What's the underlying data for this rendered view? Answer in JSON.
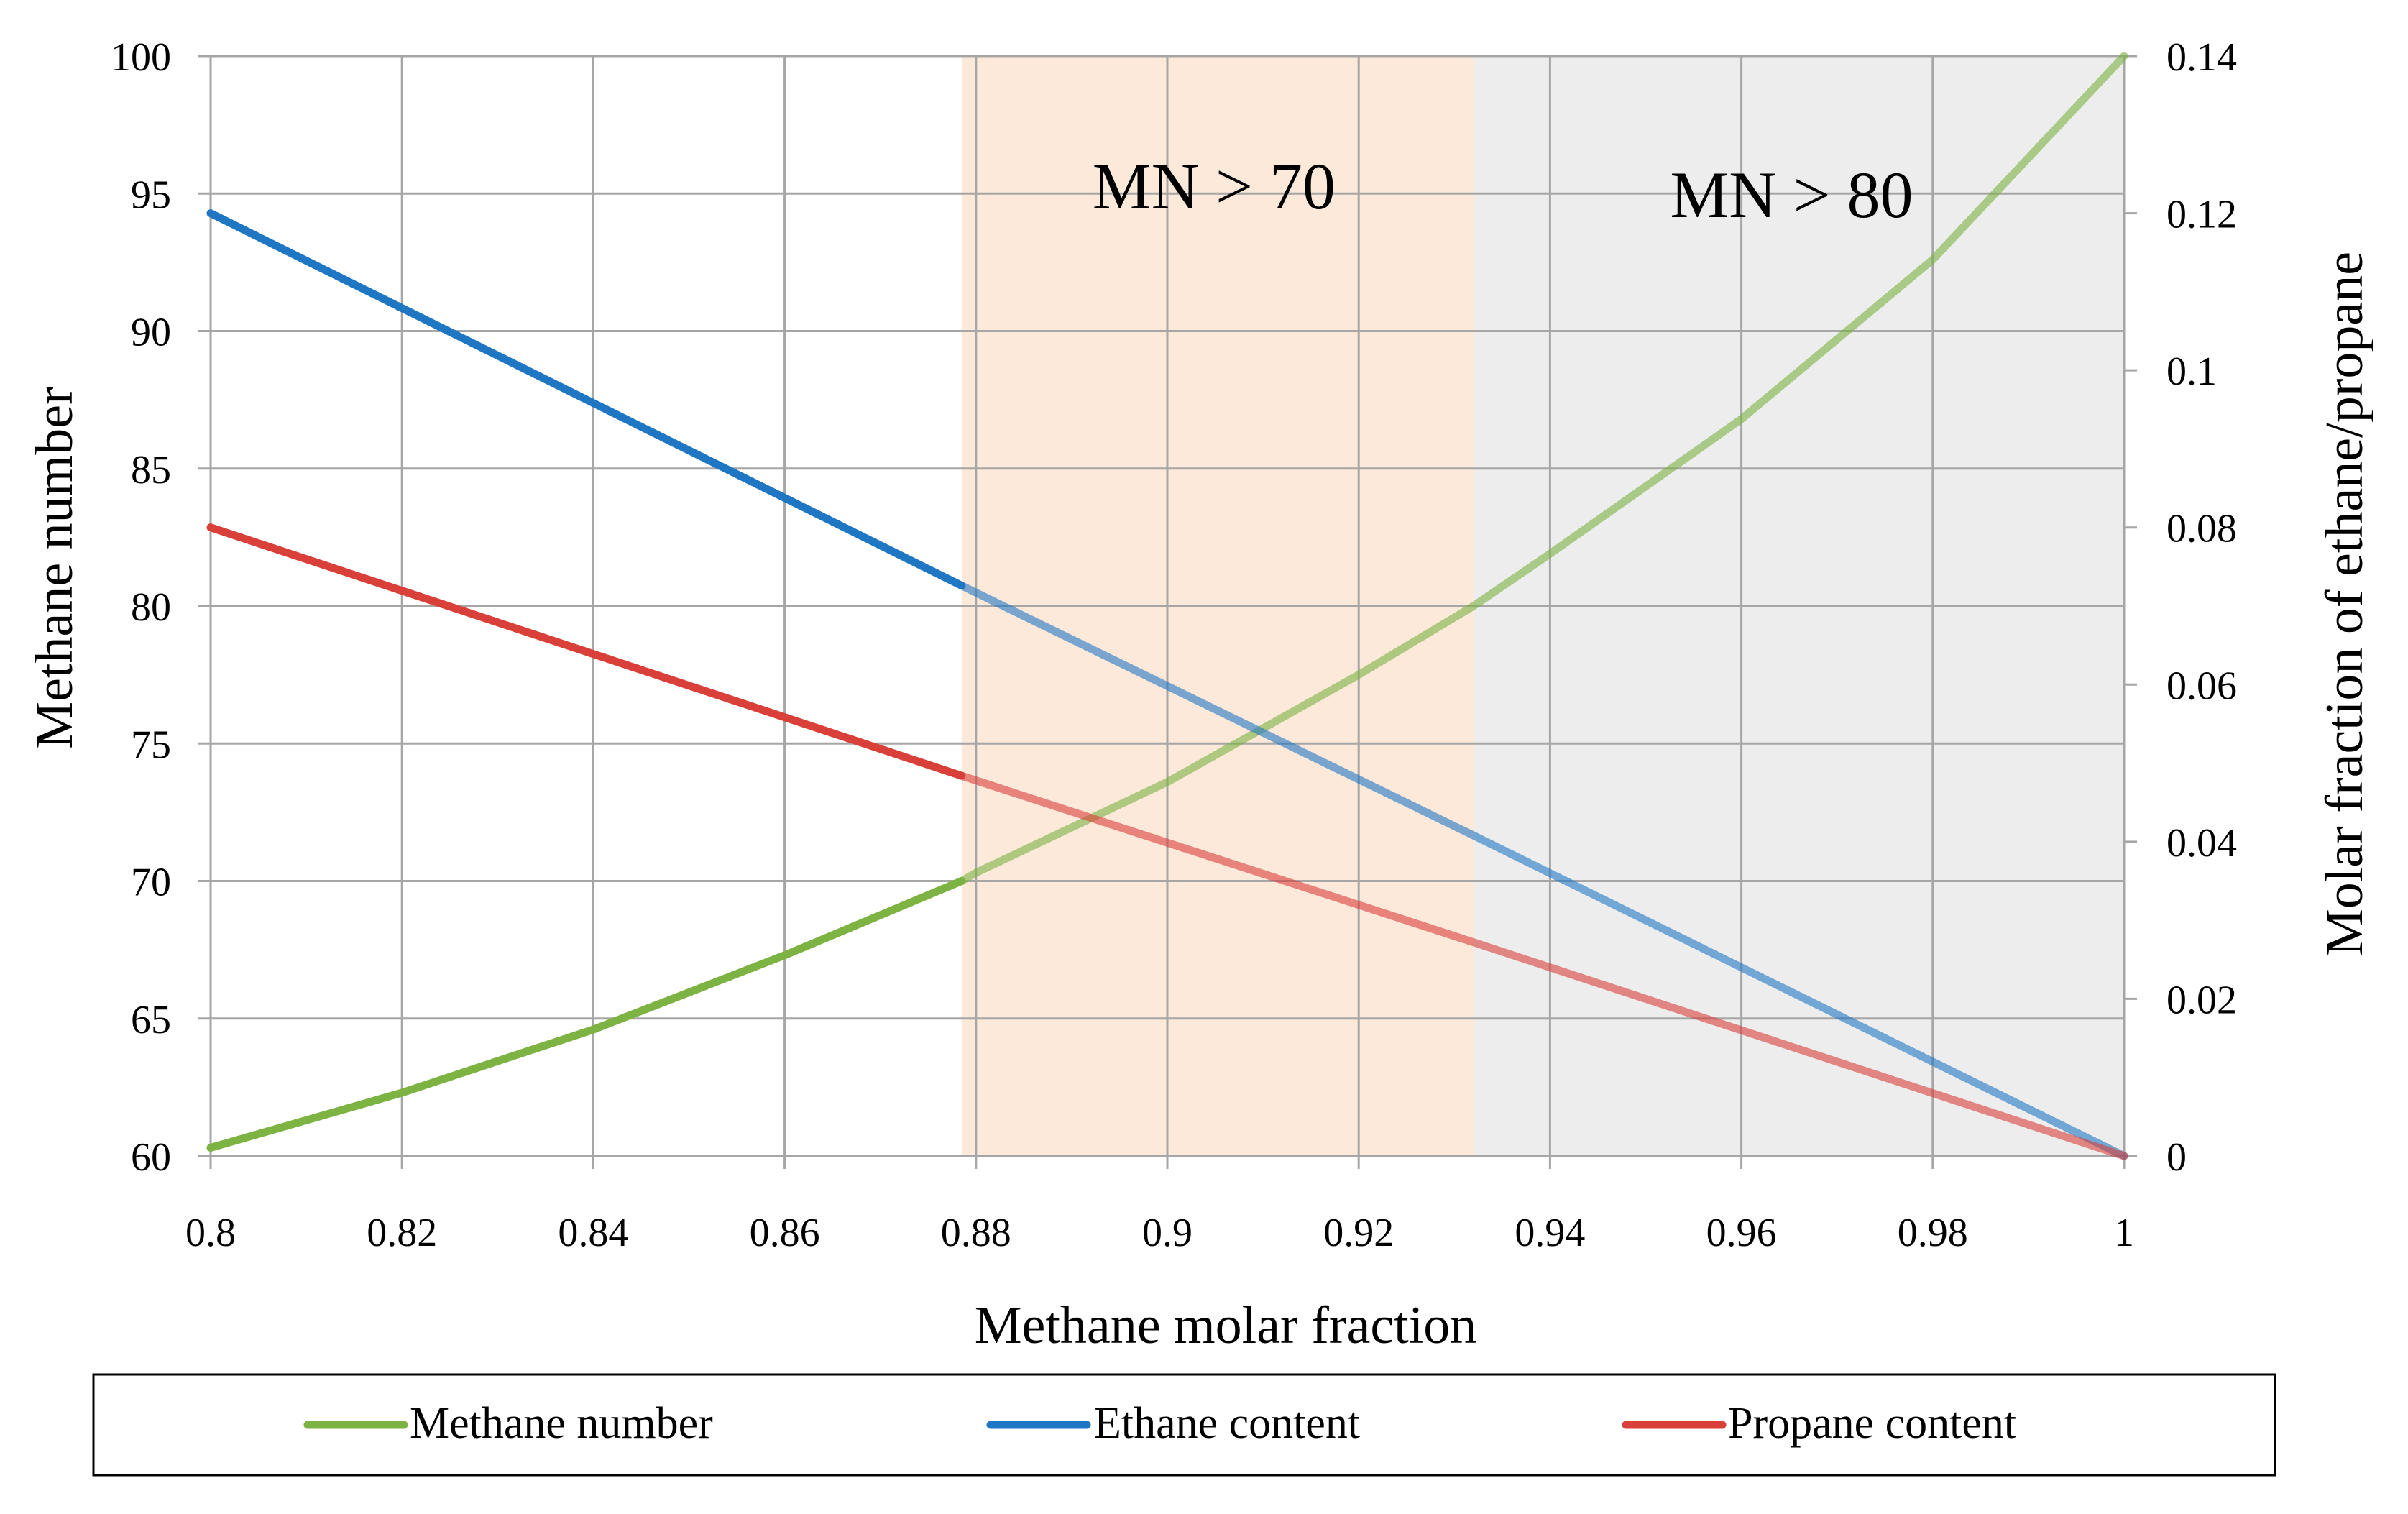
{
  "chart_data": {
    "type": "line",
    "title": "",
    "xlabel": "Methane molar fraction",
    "ylabel": "Methane number",
    "y2label": "Molar fraction of ethane/propane",
    "xlim": [
      0.8,
      1
    ],
    "ylim": [
      60,
      100
    ],
    "y2lim": [
      0,
      0.14
    ],
    "grid": true,
    "legend_position": "bottom",
    "x_ticks": [
      "0.8",
      "0.82",
      "0.84",
      "0.86",
      "0.88",
      "0.9",
      "0.92",
      "0.94",
      "0.96",
      "0.98",
      "1"
    ],
    "y_ticks": [
      "60",
      "65",
      "70",
      "75",
      "80",
      "85",
      "90",
      "95",
      "100"
    ],
    "y2_ticks": [
      "0",
      "0.02",
      "0.04",
      "0.06",
      "0.08",
      "0.1",
      "0.12",
      "0.14"
    ],
    "regions": [
      {
        "label": "MN > 70",
        "x_start": 0.8785,
        "x_end": 0.932,
        "color": "#fde9d9"
      },
      {
        "label": "MN > 80",
        "x_start": 0.932,
        "x_end": 1.0,
        "color": "#ededed"
      }
    ],
    "series": [
      {
        "name": "Methane number",
        "axis": "left",
        "color": "#7cb342",
        "x": [
          0.8,
          0.82,
          0.84,
          0.86,
          0.8785,
          0.88,
          0.9,
          0.92,
          0.932,
          0.94,
          0.96,
          0.98,
          1.0
        ],
        "values": [
          60.3,
          62.3,
          64.6,
          67.3,
          70.0,
          70.3,
          73.6,
          77.5,
          80.0,
          81.9,
          86.8,
          92.6,
          100.0
        ]
      },
      {
        "name": "Ethane content",
        "axis": "right",
        "color": "#1f77c4",
        "x": [
          0.8,
          0.8785,
          0.932,
          1.0
        ],
        "values": [
          0.12,
          0.0726,
          0.0408,
          0.0
        ]
      },
      {
        "name": "Propane content",
        "axis": "right",
        "color": "#d9403a",
        "x": [
          0.8,
          0.8785,
          0.932,
          1.0
        ],
        "values": [
          0.08,
          0.0484,
          0.0272,
          0.0
        ]
      }
    ]
  }
}
